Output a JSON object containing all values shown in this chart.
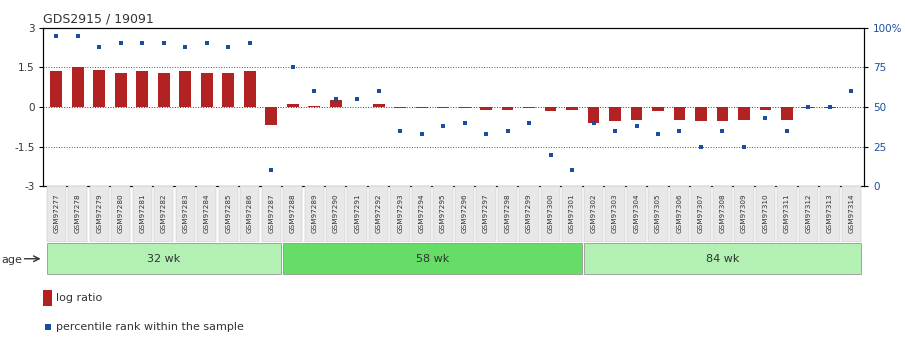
{
  "title": "GDS2915 / 19091",
  "samples": [
    "GSM97277",
    "GSM97278",
    "GSM97279",
    "GSM97280",
    "GSM97281",
    "GSM97282",
    "GSM97283",
    "GSM97284",
    "GSM97285",
    "GSM97286",
    "GSM97287",
    "GSM97288",
    "GSM97289",
    "GSM97290",
    "GSM97291",
    "GSM97292",
    "GSM97293",
    "GSM97294",
    "GSM97295",
    "GSM97296",
    "GSM97297",
    "GSM97298",
    "GSM97299",
    "GSM97300",
    "GSM97301",
    "GSM97302",
    "GSM97303",
    "GSM97304",
    "GSM97305",
    "GSM97306",
    "GSM97307",
    "GSM97308",
    "GSM97309",
    "GSM97310",
    "GSM97311",
    "GSM97312",
    "GSM97313",
    "GSM97314"
  ],
  "log_ratio": [
    1.35,
    1.5,
    1.4,
    1.3,
    1.35,
    1.3,
    1.35,
    1.3,
    1.3,
    1.35,
    -0.7,
    0.1,
    0.05,
    0.25,
    0.0,
    0.1,
    -0.05,
    -0.05,
    -0.05,
    -0.05,
    -0.12,
    -0.1,
    -0.05,
    -0.15,
    -0.12,
    -0.6,
    -0.55,
    -0.5,
    -0.15,
    -0.5,
    -0.55,
    -0.55,
    -0.5,
    -0.1,
    -0.5,
    -0.05,
    -0.05,
    -0.02
  ],
  "percentile_rank": [
    95,
    95,
    88,
    90,
    90,
    90,
    88,
    90,
    88,
    90,
    10,
    75,
    60,
    55,
    55,
    60,
    35,
    33,
    38,
    40,
    33,
    35,
    40,
    20,
    10,
    40,
    35,
    38,
    33,
    35,
    25,
    35,
    25,
    43,
    35,
    50,
    50,
    60
  ],
  "group_32wk": [
    0,
    10
  ],
  "group_58wk": [
    11,
    24
  ],
  "group_84wk": [
    25,
    37
  ],
  "ylim": [
    -3,
    3
  ],
  "yticks_left": [
    -3,
    -1.5,
    0,
    1.5,
    3
  ],
  "yticks_right_vals": [
    0,
    25,
    50,
    75,
    100
  ],
  "bar_color": "#b22222",
  "dot_color": "#1a4fa0",
  "bg_color": "#ffffff",
  "plot_bg": "#ffffff",
  "group_color_light": "#b3f0b3",
  "group_color_dark": "#66dd66",
  "dotted_line_color": "#555555",
  "zero_line_color": "#cc0000",
  "bar_width": 0.55,
  "tick_label_bg": "#e8e8e8"
}
